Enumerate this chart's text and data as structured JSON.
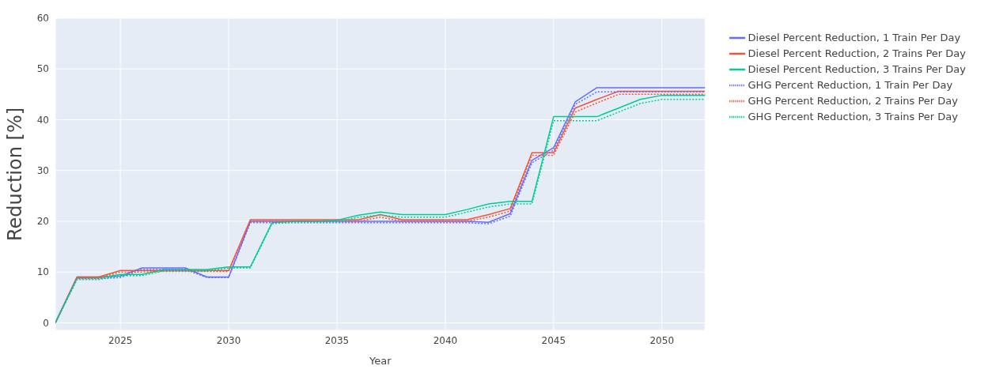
{
  "chart_data": {
    "type": "line",
    "xlabel": "Year",
    "ylabel": "Reduction [%]",
    "x": [
      2022,
      2023,
      2024,
      2025,
      2026,
      2027,
      2028,
      2029,
      2030,
      2031,
      2032,
      2033,
      2034,
      2035,
      2036,
      2037,
      2038,
      2039,
      2040,
      2041,
      2042,
      2043,
      2044,
      2045,
      2046,
      2047,
      2048,
      2049,
      2050,
      2051,
      2052
    ],
    "xlim": [
      2022,
      2052
    ],
    "xticks": [
      2025,
      2030,
      2035,
      2040,
      2045,
      2050
    ],
    "ylim": [
      -1.5,
      60
    ],
    "yticks": [
      0,
      10,
      20,
      30,
      40,
      50,
      60
    ],
    "grid": true,
    "legend": "top right",
    "marker": "none",
    "series": [
      {
        "name": "Diesel Percent Reduction, 1 Train Per Day",
        "color": "#636efa",
        "line_style": "solid",
        "values": [
          0,
          9,
          9,
          9.2,
          10.8,
          10.8,
          10.8,
          9,
          9,
          20,
          20,
          20,
          20,
          20,
          20,
          20,
          20,
          20,
          20,
          20,
          19.8,
          21.5,
          32,
          34.5,
          43.5,
          46.3,
          46.3,
          46.3,
          46.3,
          46.3,
          46.3
        ]
      },
      {
        "name": "Diesel Percent Reduction, 2 Trains Per Day",
        "color": "#ef553b",
        "line_style": "solid",
        "values": [
          0,
          9,
          9,
          10.3,
          10.3,
          10.3,
          10.3,
          10.3,
          10.3,
          20.3,
          20.3,
          20.3,
          20.3,
          20.3,
          20.3,
          21.3,
          20.3,
          20.3,
          20.3,
          20.3,
          21.3,
          22.5,
          33.5,
          33.5,
          42.3,
          44,
          45.6,
          45.6,
          45.6,
          45.6,
          45.6
        ]
      },
      {
        "name": "Diesel Percent Reduction, 3 Trains Per Day",
        "color": "#00cc96",
        "line_style": "solid",
        "values": [
          0,
          8.8,
          8.8,
          9.5,
          9.5,
          10.5,
          10.5,
          10.5,
          11,
          11,
          19.7,
          20,
          20,
          20.2,
          21.2,
          21.8,
          21.3,
          21.3,
          21.3,
          22.3,
          23.4,
          23.9,
          23.9,
          40.6,
          40.6,
          40.6,
          42.3,
          44,
          44.8,
          44.8,
          44.8
        ]
      },
      {
        "name": "GHG Percent Reduction, 1 Train Per Day",
        "color": "#636efa",
        "line_style": "dotted",
        "values": [
          0,
          8.7,
          8.7,
          8.9,
          10.5,
          10.5,
          10.5,
          8.9,
          8.9,
          19.7,
          19.7,
          19.7,
          19.7,
          19.7,
          19.7,
          19.7,
          19.7,
          19.7,
          19.7,
          19.7,
          19.5,
          21,
          31.5,
          34,
          43,
          45.5,
          45.5,
          45.5,
          45.5,
          45.5,
          45.5
        ]
      },
      {
        "name": "GHG Percent Reduction, 2 Trains Per Day",
        "color": "#ef553b",
        "line_style": "dotted",
        "values": [
          0,
          8.8,
          8.8,
          10,
          10,
          10.1,
          10.1,
          10.1,
          10.1,
          20,
          20,
          20,
          20,
          20,
          20,
          20.8,
          20,
          20,
          20,
          20,
          20.8,
          22,
          33,
          33,
          41.5,
          43.3,
          45,
          45,
          45,
          45,
          45
        ]
      },
      {
        "name": "GHG Percent Reduction, 3 Trains Per Day",
        "color": "#00cc96",
        "line_style": "dotted",
        "values": [
          0,
          8.5,
          8.5,
          9.3,
          9.3,
          10.2,
          10.2,
          10.2,
          10.8,
          10.8,
          19.5,
          19.8,
          19.8,
          19.9,
          20.8,
          21.2,
          20.8,
          20.8,
          20.8,
          21.8,
          22.8,
          23.4,
          23.4,
          39.8,
          39.8,
          39.8,
          41.5,
          43.2,
          44,
          44,
          44
        ]
      }
    ]
  }
}
